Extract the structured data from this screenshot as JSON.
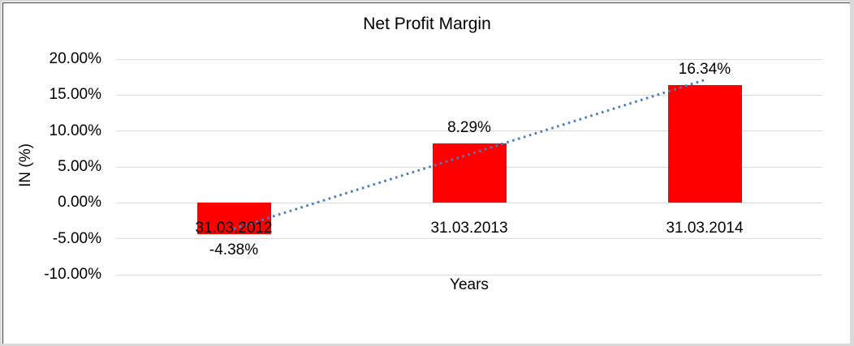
{
  "frame": {
    "background": "#FFFFFF",
    "outer_border_color": "#D9D9D9",
    "inner_border_color": "#404040"
  },
  "chart_data": {
    "type": "bar",
    "title": "Net Profit Margin",
    "xlabel": "Years",
    "ylabel": "IN (%)",
    "categories": [
      "31.03.2012",
      "31.03.2013",
      "31.03.2014"
    ],
    "series": [
      {
        "name": "Net Profit Margin",
        "values": [
          -4.38,
          8.29,
          16.34
        ]
      }
    ],
    "data_labels": [
      "-4.38%",
      "8.29%",
      "16.34%"
    ],
    "ylim": [
      -10,
      20
    ],
    "ytick_step": 5,
    "ytick_labels": [
      "20.00%",
      "15.00%",
      "10.00%",
      "5.00%",
      "0.00%",
      "-5.00%",
      "-10.00%"
    ],
    "grid": true,
    "legend": "none",
    "bar_color": "#FF0000",
    "gridline_color": "#D9D9D9",
    "text_color": "#000000",
    "trendline": {
      "type": "linear",
      "style": "dotted",
      "color": "#4A7EBB"
    }
  }
}
